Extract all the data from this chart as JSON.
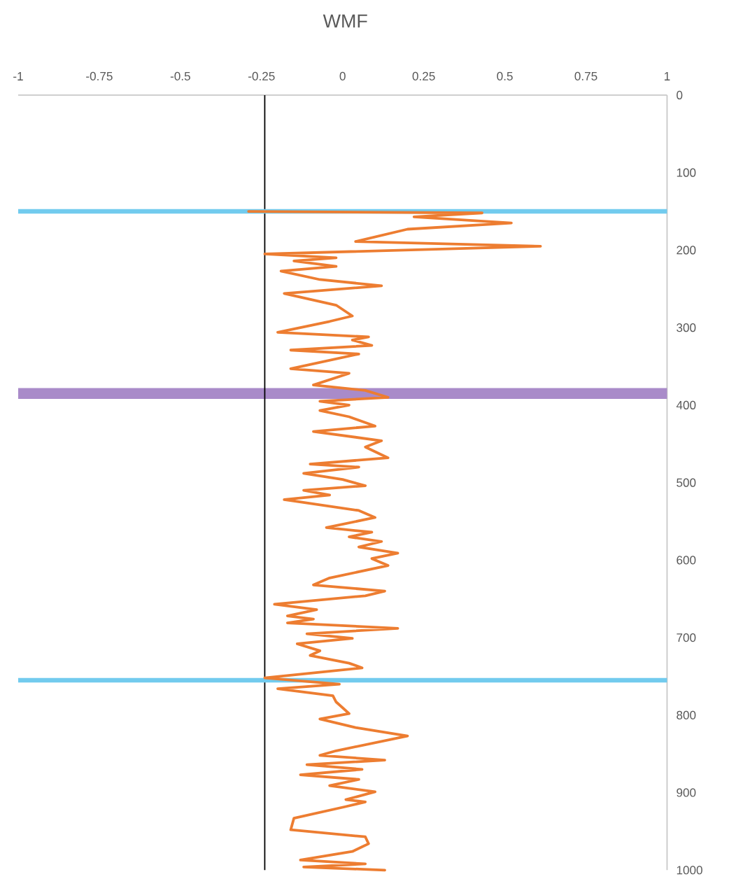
{
  "chart_data": {
    "type": "line",
    "title": "WMF",
    "x": [
      -0.29,
      0.43,
      0.22,
      0.52,
      0.2,
      0.04,
      0.61,
      -0.24,
      -0.02,
      -0.15,
      -0.02,
      -0.19,
      -0.07,
      0.12,
      -0.18,
      -0.02,
      0.03,
      -0.04,
      -0.2,
      0.08,
      0.03,
      0.09,
      -0.16,
      0.05,
      -0.16,
      0.02,
      -0.09,
      0.07,
      0.14,
      -0.07,
      0.02,
      -0.07,
      0.02,
      0.1,
      -0.09,
      0.12,
      0.07,
      0.14,
      -0.1,
      0.05,
      -0.12,
      0,
      0.07,
      -0.12,
      -0.04,
      -0.18,
      0.05,
      0.1,
      -0.05,
      0.09,
      0.02,
      0.12,
      0.05,
      0.17,
      0.09,
      0.14,
      -0.04,
      -0.09,
      0.13,
      0.07,
      -0.21,
      -0.08,
      -0.17,
      -0.09,
      -0.17,
      0.17,
      -0.11,
      0.03,
      -0.14,
      -0.07,
      -0.1,
      0.02,
      0.06,
      -0.24,
      -0.01,
      -0.2,
      -0.03,
      -0.02,
      0.02,
      -0.07,
      0.04,
      0.2,
      -0.02,
      -0.07,
      0.13,
      -0.11,
      0.06,
      -0.13,
      0.05,
      -0.04,
      0.1,
      0.01,
      0.07,
      0.01,
      -0.15,
      -0.16,
      0.07,
      0.08,
      0.06,
      0.03,
      -0.13,
      0.07,
      -0.12,
      0.13
    ],
    "values": [
      150,
      152,
      157,
      165,
      173,
      189,
      195,
      205,
      210,
      214,
      221,
      227,
      238,
      246,
      256,
      271,
      285,
      292,
      306,
      312,
      316,
      323,
      329,
      334,
      353,
      359,
      374,
      381,
      390,
      395,
      400,
      407,
      415,
      427,
      434,
      446,
      454,
      468,
      476,
      480,
      488,
      496,
      504,
      510,
      516,
      522,
      536,
      545,
      558,
      564,
      570,
      576,
      583,
      591,
      598,
      607,
      623,
      632,
      640,
      646,
      657,
      664,
      672,
      676,
      681,
      688,
      695,
      701,
      708,
      717,
      723,
      733,
      739,
      752,
      760,
      766,
      775,
      783,
      798,
      805,
      816,
      827,
      846,
      852,
      858,
      864,
      870,
      877,
      883,
      891,
      899,
      909,
      912,
      918,
      933,
      948,
      957,
      966,
      970,
      976,
      987,
      992,
      996,
      1000
    ],
    "color": "#ed7d31",
    "xlim": [
      -1,
      1
    ],
    "xticks": [
      -1,
      -0.75,
      -0.5,
      -0.25,
      0,
      0.25,
      0.5,
      0.75,
      1
    ],
    "ylim": [
      1000,
      0
    ],
    "yticks": [
      0,
      100,
      200,
      300,
      400,
      500,
      600,
      700,
      800,
      900,
      1000
    ],
    "ref_lines": [
      {
        "axis": "x",
        "value": -0.24,
        "color": "#000000"
      },
      {
        "axis": "y",
        "value": 150,
        "color": "#72cbee"
      },
      {
        "axis": "y",
        "value": 755,
        "color": "#72cbee"
      }
    ],
    "bands": [
      {
        "axis": "y",
        "from": 378,
        "to": 392,
        "color": "#a98bc9"
      }
    ]
  }
}
